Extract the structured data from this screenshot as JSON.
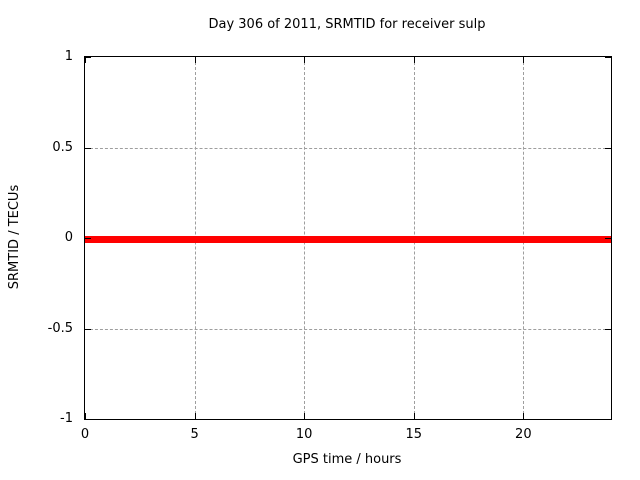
{
  "chart_data": {
    "type": "line",
    "title": "Day 306 of 2011, SRMTID for receiver sulp",
    "xlabel": "GPS time / hours",
    "ylabel": "SRMTID / TECUs",
    "xlim": [
      0,
      24
    ],
    "ylim": [
      -1,
      1
    ],
    "x_ticks": [
      0,
      5,
      10,
      15,
      20
    ],
    "x_tick_labels": [
      "0",
      "5",
      "10",
      "15",
      "20"
    ],
    "y_ticks": [
      -1,
      -0.5,
      0,
      0.5,
      1
    ],
    "y_tick_labels": [
      "-1",
      "-0.5",
      "0",
      "0.5",
      "1"
    ],
    "grid": true,
    "legend": "none",
    "series": [
      {
        "name": "SRMTID",
        "color": "#ff0000",
        "thickness_px": 7,
        "x": [
          0,
          24
        ],
        "y": [
          0,
          0
        ]
      }
    ]
  },
  "colors": {
    "background": "#ffffff",
    "border": "#000000",
    "grid": "#9e9e9e",
    "text": "#000000",
    "series": "#ff0000"
  }
}
